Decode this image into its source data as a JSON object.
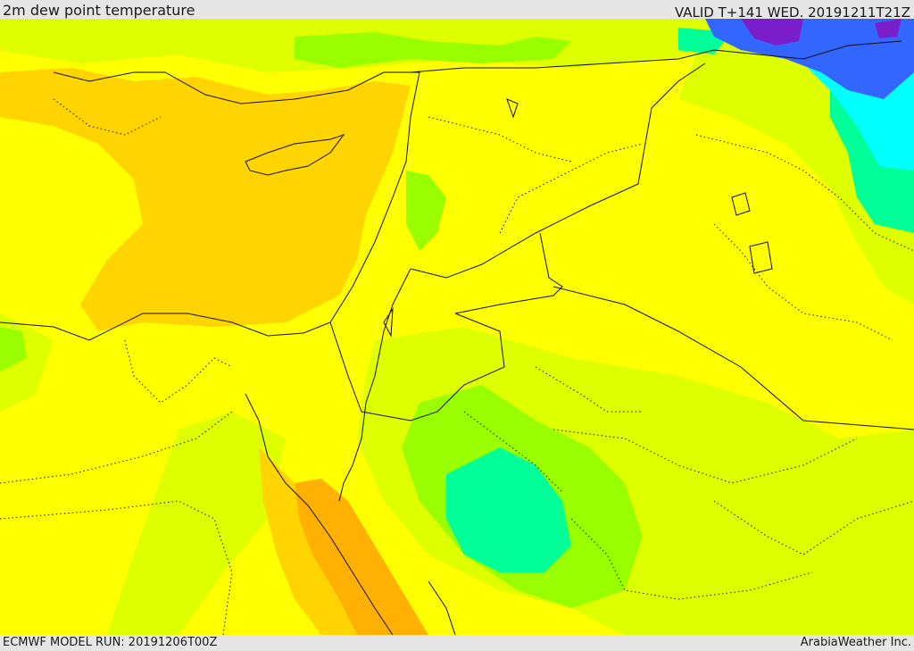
{
  "header": {
    "title": "2m dew point temperature",
    "valid": "VALID T+141 WED. 20191211T21Z"
  },
  "footer": {
    "model_run": "ECMWF MODEL RUN: 20191206T00Z",
    "credit": "ArabiaWeather Inc."
  },
  "palette": {
    "background_field": "#ffff00",
    "orange": "#ffd400",
    "dark_orange": "#ffb000",
    "yellow_green": "#ddff00",
    "green": "#99ff00",
    "light_green": "#7cfc00",
    "teal": "#00ff99",
    "cyan": "#00ffff",
    "blue": "#3366ff",
    "purple": "#7a1ecc"
  }
}
